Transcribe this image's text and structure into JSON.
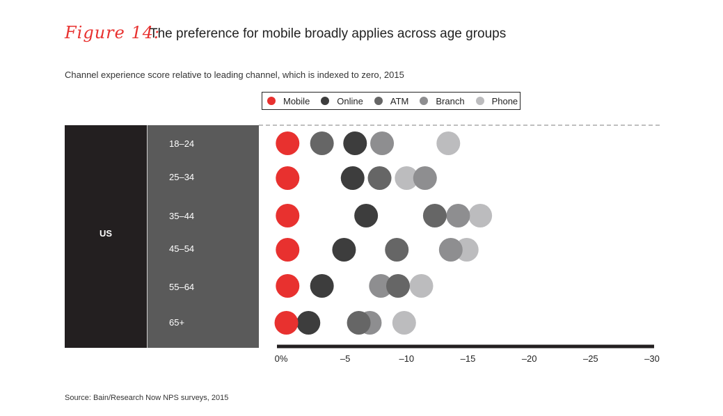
{
  "figure_label": "Figure 14:",
  "title": "The preference for mobile broadly applies across age groups",
  "subtitle": "Channel experience score relative to leading channel, which is indexed to zero, 2015",
  "source": "Source: Bain/Research Now NPS surveys, 2015",
  "colors": {
    "Mobile": "#e8312f",
    "Online": "#3d3d3d",
    "ATM": "#666666",
    "Branch": "#8e8e90",
    "Phone": "#bcbcbe"
  },
  "chart_data": {
    "type": "scatter",
    "subtitle": "Channel experience score relative to leading channel, which is indexed to zero, 2015",
    "group": "US",
    "categories": [
      "18–24",
      "25–34",
      "35–44",
      "45–54",
      "55–64",
      "65+"
    ],
    "xlim": [
      0,
      -30
    ],
    "x_ticks": [
      0,
      -5,
      -10,
      -15,
      -20,
      -25,
      -30
    ],
    "x_tick_labels": [
      "0%",
      "–5",
      "–10",
      "–15",
      "–20",
      "–25",
      "–30"
    ],
    "legend": [
      "Mobile",
      "Online",
      "ATM",
      "Branch",
      "Phone"
    ],
    "legend_position": "top-right",
    "series": [
      {
        "name": "Mobile",
        "values": [
          -0.3,
          -0.3,
          -0.3,
          -0.3,
          -0.3,
          -0.2
        ]
      },
      {
        "name": "Online",
        "values": [
          -5.8,
          -5.6,
          -6.7,
          -4.9,
          -3.1,
          -2.0
        ]
      },
      {
        "name": "ATM",
        "values": [
          -3.1,
          -7.8,
          -12.3,
          -9.2,
          -9.3,
          -6.1
        ]
      },
      {
        "name": "Branch",
        "values": [
          -8.0,
          -11.5,
          -14.2,
          -13.6,
          -7.9,
          -7.0
        ]
      },
      {
        "name": "Phone",
        "values": [
          -13.4,
          -10.0,
          -16.0,
          -14.9,
          -11.2,
          -9.8
        ]
      }
    ]
  }
}
